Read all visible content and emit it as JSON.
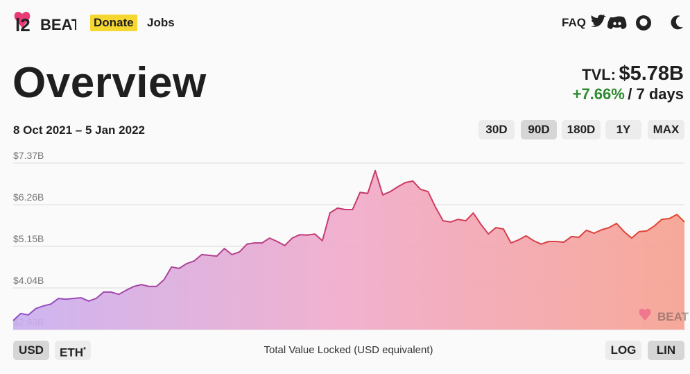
{
  "nav": {
    "logo": "BEAT",
    "donate": "Donate",
    "jobs": "Jobs",
    "faq": "FAQ"
  },
  "header": {
    "title": "Overview",
    "tvl_label": "TVL:",
    "tvl_value": "$5.78B",
    "change": "+7.66%",
    "period": "/ 7 days"
  },
  "date_range": "8 Oct 2021 – 5 Jan 2022",
  "ranges": {
    "options": [
      "30D",
      "90D",
      "180D",
      "1Y",
      "MAX"
    ],
    "selected": 1
  },
  "currency": {
    "options": [
      "USD",
      "ETH"
    ],
    "note": "*",
    "selected": 0
  },
  "scale": {
    "options": [
      "LOG",
      "LIN"
    ],
    "selected": 1
  },
  "caption": "Total Value Locked (USD equivalent)",
  "chart_data": {
    "type": "area",
    "colors": [
      "#8e4fc6",
      "#c9386e",
      "#e2452b"
    ],
    "fill_colors": [
      "#c9aef0",
      "#f1a9c9",
      "#f6a08e"
    ],
    "ylim": [
      2.93,
      7.37
    ],
    "yticks": [
      {
        "value": 2.93,
        "label": "$2.93B"
      },
      {
        "value": 4.04,
        "label": "$4.04B"
      },
      {
        "value": 5.15,
        "label": "$5.15B"
      },
      {
        "value": 6.26,
        "label": "$6.26B"
      },
      {
        "value": 7.37,
        "label": "$7.37B"
      }
    ],
    "grid": true,
    "values": [
      3.17,
      3.36,
      3.32,
      3.49,
      3.56,
      3.61,
      3.76,
      3.74,
      3.76,
      3.78,
      3.69,
      3.76,
      3.93,
      3.93,
      3.87,
      3.98,
      4.08,
      4.13,
      4.08,
      4.08,
      4.26,
      4.6,
      4.56,
      4.69,
      4.76,
      4.93,
      4.91,
      4.89,
      5.09,
      4.93,
      5.0,
      5.21,
      5.24,
      5.24,
      5.37,
      5.28,
      5.17,
      5.37,
      5.46,
      5.45,
      5.48,
      5.3,
      6.04,
      6.17,
      6.13,
      6.13,
      6.59,
      6.56,
      7.17,
      6.52,
      6.61,
      6.74,
      6.85,
      6.89,
      6.67,
      6.61,
      6.19,
      5.83,
      5.8,
      5.87,
      5.83,
      6.04,
      5.74,
      5.48,
      5.65,
      5.61,
      5.24,
      5.32,
      5.43,
      5.3,
      5.21,
      5.28,
      5.28,
      5.26,
      5.41,
      5.39,
      5.58,
      5.5,
      5.59,
      5.65,
      5.76,
      5.54,
      5.37,
      5.54,
      5.56,
      5.69,
      5.87,
      5.89,
      6.0,
      5.8
    ]
  }
}
